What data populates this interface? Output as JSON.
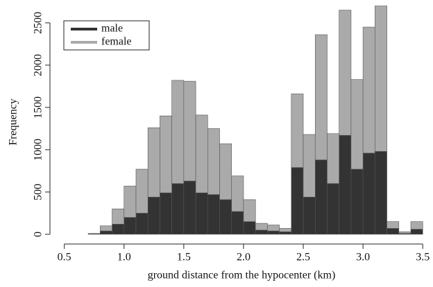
{
  "chart_data": {
    "type": "histogram",
    "xlabel": "ground distance from the hypocenter (km)",
    "ylabel": "Frequency",
    "bins": [
      0.7,
      0.8,
      0.9,
      1.0,
      1.1,
      1.2,
      1.3,
      1.4,
      1.5,
      1.6,
      1.7,
      1.8,
      1.9,
      2.0,
      2.1,
      2.2,
      2.3,
      2.4,
      2.5,
      2.6,
      2.7,
      2.8,
      2.9,
      3.0,
      3.1,
      3.2,
      3.3,
      3.4,
      3.5
    ],
    "series": [
      {
        "name": "male",
        "color": "#333333",
        "values": [
          5,
          40,
          120,
          200,
          250,
          440,
          490,
          600,
          630,
          490,
          470,
          410,
          270,
          150,
          50,
          40,
          30,
          790,
          440,
          880,
          600,
          1170,
          770,
          960,
          980,
          70,
          10,
          60
        ]
      },
      {
        "name": "female",
        "color": "#aaaaaa",
        "values": [
          5,
          60,
          180,
          370,
          520,
          820,
          910,
          1220,
          1180,
          920,
          780,
          660,
          420,
          260,
          80,
          70,
          40,
          870,
          740,
          1480,
          590,
          1480,
          1060,
          1490,
          1720,
          80,
          20,
          90
        ]
      }
    ],
    "xlim": [
      0.38,
      3.58
    ],
    "xticks": [
      0.5,
      {
        "value": 1,
        "label": "1.0"
      },
      1.5,
      {
        "value": 2,
        "label": "2.0"
      },
      2.5,
      {
        "value": 3,
        "label": "3.0"
      },
      3.5
    ],
    "ylim": [
      -115,
      2770
    ],
    "yticks": [
      0,
      500,
      1000,
      1500,
      2000,
      2500
    ],
    "stacked": true,
    "legend": "top-left"
  }
}
